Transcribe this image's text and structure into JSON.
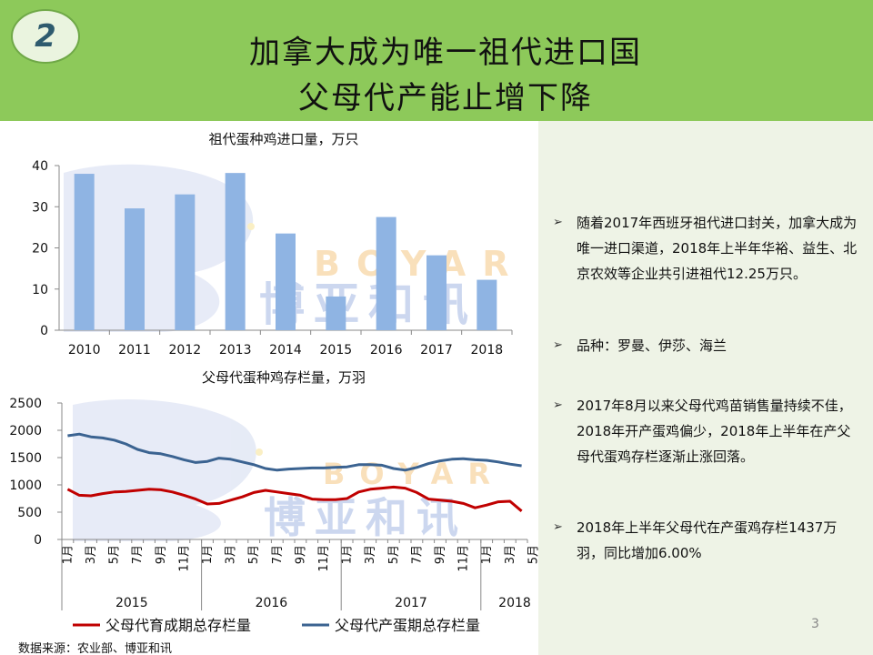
{
  "header": {
    "badge": "2",
    "title_line1": "加拿大成为唯一祖代进口国",
    "title_line2": "父母代产能止增下降"
  },
  "watermark": {
    "text_en": "BOYAR",
    "text_cn": "博亚和讯"
  },
  "chart_data": [
    {
      "type": "bar",
      "title": "祖代蛋种鸡进口量，万只",
      "categories": [
        "2010",
        "2011",
        "2012",
        "2013",
        "2014",
        "2015",
        "2016",
        "2017",
        "2018"
      ],
      "values": [
        38,
        29.6,
        33,
        38.2,
        23.5,
        8.2,
        27.5,
        18.2,
        12.25
      ],
      "ylim": [
        0,
        40
      ],
      "yticks": [
        0,
        10,
        20,
        30,
        40
      ],
      "color": "#8fb4e3"
    },
    {
      "type": "line",
      "title": "父母代蛋种鸡存栏量，万羽",
      "ylim": [
        0,
        2500
      ],
      "yticks": [
        0,
        500,
        1000,
        1500,
        2000,
        2500
      ],
      "month_labels": [
        "1月",
        "3月",
        "5月",
        "7月",
        "9月",
        "11月",
        "1月",
        "3月",
        "5月",
        "7月",
        "9月",
        "11月",
        "1月",
        "3月",
        "5月",
        "7月",
        "9月",
        "11月",
        "1月",
        "3月",
        "5月"
      ],
      "year_labels": [
        "2015",
        "2016",
        "2017",
        "2018"
      ],
      "legend_position": "bottom",
      "series": [
        {
          "name": "父母代育成期总存栏量",
          "color": "#c00000",
          "values": [
            920,
            810,
            800,
            840,
            870,
            880,
            900,
            920,
            910,
            870,
            810,
            740,
            650,
            660,
            720,
            780,
            860,
            900,
            870,
            840,
            810,
            740,
            730,
            730,
            750,
            870,
            920,
            940,
            960,
            940,
            860,
            740,
            720,
            700,
            660,
            580,
            630,
            690,
            700,
            520
          ]
        },
        {
          "name": "父母代产蛋期总存栏量",
          "color": "#3b6391",
          "values": [
            1900,
            1930,
            1880,
            1860,
            1820,
            1750,
            1650,
            1590,
            1570,
            1520,
            1460,
            1410,
            1430,
            1490,
            1470,
            1420,
            1370,
            1300,
            1270,
            1290,
            1300,
            1310,
            1310,
            1320,
            1330,
            1370,
            1370,
            1360,
            1300,
            1270,
            1320,
            1390,
            1440,
            1470,
            1480,
            1460,
            1450,
            1420,
            1380,
            1350
          ]
        }
      ]
    }
  ],
  "bullets": [
    "随着2017年西班牙祖代进口封关，加拿大成为唯一进口渠道，2018年上半年华裕、益生、北京农效等企业共引进祖代12.25万只。",
    "品种：罗曼、伊莎、海兰",
    "2017年8月以来父母代鸡苗销售量持续不佳，2018年开产蛋鸡偏少，2018年上半年在产父母代蛋鸡存栏逐渐止涨回落。",
    "2018年上半年父母代在产蛋鸡存栏1437万羽，同比增加6.00%"
  ],
  "page_number": "3",
  "source": "数据来源：农业部、博亚和讯"
}
